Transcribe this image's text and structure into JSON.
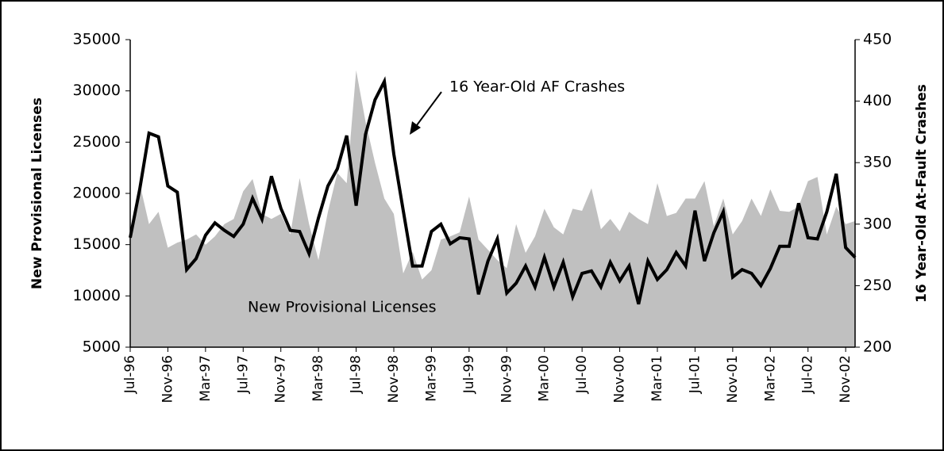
{
  "chart_data": {
    "type": "area-line",
    "categories": [
      "Jul-96",
      null,
      null,
      null,
      "Nov-96",
      null,
      null,
      null,
      "Mar-97",
      null,
      null,
      null,
      "Jul-97",
      null,
      null,
      null,
      "Nov-97",
      null,
      null,
      null,
      "Mar-98",
      null,
      null,
      null,
      "Jul-98",
      null,
      null,
      null,
      "Nov-98",
      null,
      null,
      null,
      "Mar-99",
      null,
      null,
      null,
      "Jul-99",
      null,
      null,
      null,
      "Nov-99",
      null,
      null,
      null,
      "Mar-00",
      null,
      null,
      null,
      "Jul-00",
      null,
      null,
      null,
      "Nov-00",
      null,
      null,
      null,
      "Mar-01",
      null,
      null,
      null,
      "Jul-01",
      null,
      null,
      null,
      "Nov-01",
      null,
      null,
      null,
      "Mar-02",
      null,
      null,
      null,
      "Jul-02",
      null,
      null,
      null,
      "Nov-02",
      null
    ],
    "series": [
      {
        "name": "New Provisional Licenses",
        "color": "#c0c0c0",
        "axis": "y",
        "values": [
          16000,
          21000,
          17000,
          18200,
          14700,
          15200,
          15500,
          16000,
          15000,
          15800,
          17000,
          17500,
          20200,
          21400,
          18000,
          17500,
          18000,
          16000,
          21500,
          17000,
          13500,
          18200,
          22000,
          21000,
          32000,
          27000,
          23000,
          19500,
          18000,
          12200,
          14300,
          11600,
          12500,
          15500,
          15800,
          16200,
          19700,
          15500,
          14500,
          13500,
          12700,
          17000,
          14200,
          15800,
          18500,
          16700,
          16000,
          18500,
          18300,
          20500,
          16500,
          17500,
          16300,
          18200,
          17500,
          17000,
          21000,
          17800,
          18100,
          19500,
          19500,
          21200,
          16800,
          19500,
          16000,
          17300,
          19500,
          17800,
          20400,
          18300,
          18200,
          18700,
          21200,
          21600,
          16000,
          18700,
          17000,
          17300
        ]
      },
      {
        "name": "16 Year-Old AF Crashes",
        "color": "#000000",
        "axis": "y2",
        "values": [
          289,
          328,
          374,
          371,
          331,
          326,
          263,
          272,
          291,
          301,
          295,
          290,
          300,
          321,
          304,
          339,
          313,
          295,
          294,
          276,
          305,
          331,
          345,
          372,
          315,
          373,
          401,
          416,
          357,
          311,
          266,
          266,
          294,
          300,
          284,
          289,
          288,
          243,
          270,
          288,
          244,
          252,
          266,
          249,
          273,
          249,
          269,
          241,
          260,
          262,
          249,
          269,
          254,
          266,
          235,
          270,
          255,
          263,
          277,
          266,
          311,
          270,
          293,
          310,
          257,
          263,
          260,
          250,
          264,
          282,
          282,
          317,
          289,
          288,
          310,
          341,
          281,
          273
        ]
      }
    ],
    "ylabel": "New Provisional Licenses",
    "y2label": "16 Year-Old At-Fault Crashes",
    "ylim": [
      5000,
      35000
    ],
    "yticks": [
      5000,
      10000,
      15000,
      20000,
      25000,
      30000,
      35000
    ],
    "y2lim": [
      200,
      450
    ],
    "y2ticks": [
      200,
      250,
      300,
      350,
      400,
      450
    ]
  }
}
